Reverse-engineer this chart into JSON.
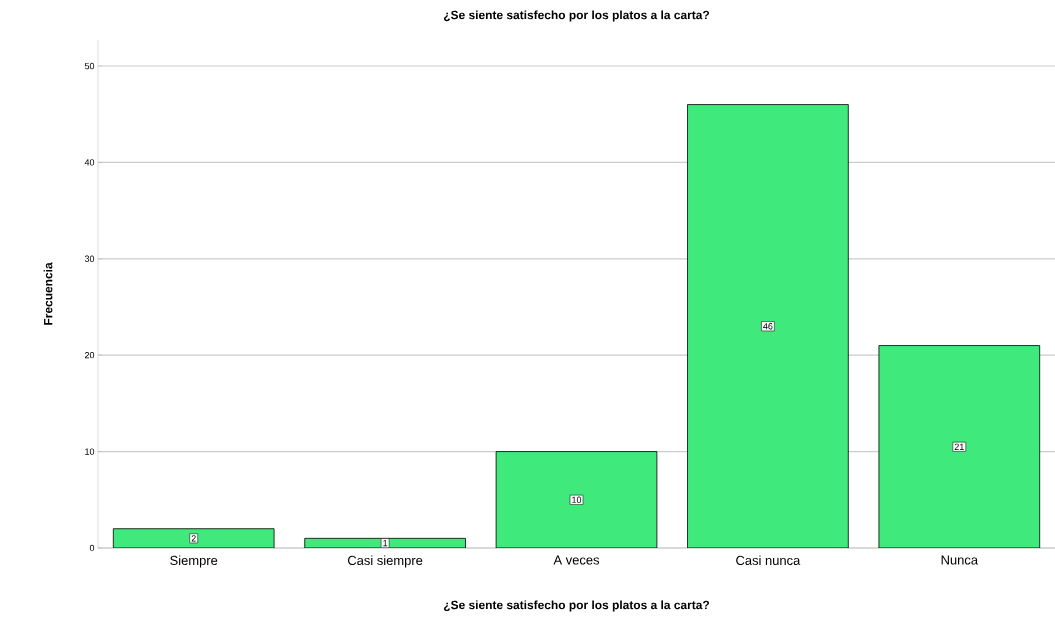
{
  "chart_data": {
    "type": "bar",
    "title": "¿Se siente satisfecho por los platos a la carta?",
    "xlabel": "¿Se siente satisfecho por los platos a la carta?",
    "ylabel": "Frecuencia",
    "categories": [
      "Siempre",
      "Casi siempre",
      "A veces",
      "Casi nunca",
      "Nunca"
    ],
    "values": [
      2,
      1,
      10,
      46,
      21
    ],
    "color": "#40e97b",
    "ylim": [
      0,
      52.7
    ],
    "yticks": [
      0,
      10,
      20,
      30,
      40,
      50
    ],
    "grid": "y",
    "data_labels": true
  }
}
